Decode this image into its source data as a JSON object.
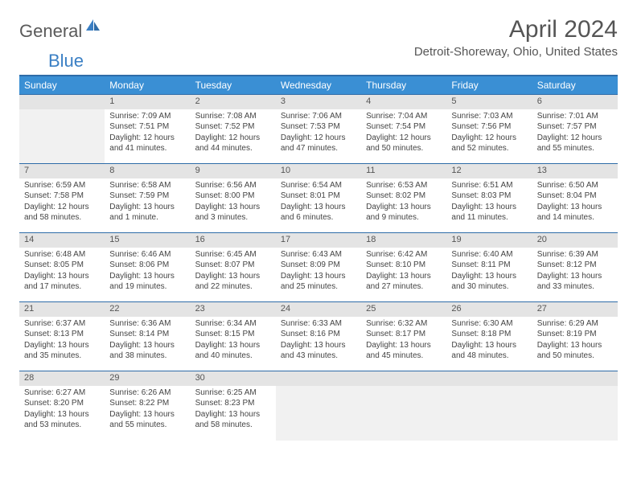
{
  "logo": {
    "text1": "General",
    "text2": "Blue"
  },
  "title": "April 2024",
  "location": "Detroit-Shoreway, Ohio, United States",
  "colors": {
    "header_bg": "#3a8fd4",
    "header_border": "#2e6ca8",
    "daynum_bg": "#e4e4e4",
    "empty_bg": "#f1f1f1",
    "text": "#444444",
    "logo_gray": "#5a5a5a",
    "logo_blue": "#3a7fc4"
  },
  "weekdays": [
    "Sunday",
    "Monday",
    "Tuesday",
    "Wednesday",
    "Thursday",
    "Friday",
    "Saturday"
  ],
  "weeks": [
    [
      null,
      {
        "n": "1",
        "sr": "7:09 AM",
        "ss": "7:51 PM",
        "dl": "12 hours and 41 minutes."
      },
      {
        "n": "2",
        "sr": "7:08 AM",
        "ss": "7:52 PM",
        "dl": "12 hours and 44 minutes."
      },
      {
        "n": "3",
        "sr": "7:06 AM",
        "ss": "7:53 PM",
        "dl": "12 hours and 47 minutes."
      },
      {
        "n": "4",
        "sr": "7:04 AM",
        "ss": "7:54 PM",
        "dl": "12 hours and 50 minutes."
      },
      {
        "n": "5",
        "sr": "7:03 AM",
        "ss": "7:56 PM",
        "dl": "12 hours and 52 minutes."
      },
      {
        "n": "6",
        "sr": "7:01 AM",
        "ss": "7:57 PM",
        "dl": "12 hours and 55 minutes."
      }
    ],
    [
      {
        "n": "7",
        "sr": "6:59 AM",
        "ss": "7:58 PM",
        "dl": "12 hours and 58 minutes."
      },
      {
        "n": "8",
        "sr": "6:58 AM",
        "ss": "7:59 PM",
        "dl": "13 hours and 1 minute."
      },
      {
        "n": "9",
        "sr": "6:56 AM",
        "ss": "8:00 PM",
        "dl": "13 hours and 3 minutes."
      },
      {
        "n": "10",
        "sr": "6:54 AM",
        "ss": "8:01 PM",
        "dl": "13 hours and 6 minutes."
      },
      {
        "n": "11",
        "sr": "6:53 AM",
        "ss": "8:02 PM",
        "dl": "13 hours and 9 minutes."
      },
      {
        "n": "12",
        "sr": "6:51 AM",
        "ss": "8:03 PM",
        "dl": "13 hours and 11 minutes."
      },
      {
        "n": "13",
        "sr": "6:50 AM",
        "ss": "8:04 PM",
        "dl": "13 hours and 14 minutes."
      }
    ],
    [
      {
        "n": "14",
        "sr": "6:48 AM",
        "ss": "8:05 PM",
        "dl": "13 hours and 17 minutes."
      },
      {
        "n": "15",
        "sr": "6:46 AM",
        "ss": "8:06 PM",
        "dl": "13 hours and 19 minutes."
      },
      {
        "n": "16",
        "sr": "6:45 AM",
        "ss": "8:07 PM",
        "dl": "13 hours and 22 minutes."
      },
      {
        "n": "17",
        "sr": "6:43 AM",
        "ss": "8:09 PM",
        "dl": "13 hours and 25 minutes."
      },
      {
        "n": "18",
        "sr": "6:42 AM",
        "ss": "8:10 PM",
        "dl": "13 hours and 27 minutes."
      },
      {
        "n": "19",
        "sr": "6:40 AM",
        "ss": "8:11 PM",
        "dl": "13 hours and 30 minutes."
      },
      {
        "n": "20",
        "sr": "6:39 AM",
        "ss": "8:12 PM",
        "dl": "13 hours and 33 minutes."
      }
    ],
    [
      {
        "n": "21",
        "sr": "6:37 AM",
        "ss": "8:13 PM",
        "dl": "13 hours and 35 minutes."
      },
      {
        "n": "22",
        "sr": "6:36 AM",
        "ss": "8:14 PM",
        "dl": "13 hours and 38 minutes."
      },
      {
        "n": "23",
        "sr": "6:34 AM",
        "ss": "8:15 PM",
        "dl": "13 hours and 40 minutes."
      },
      {
        "n": "24",
        "sr": "6:33 AM",
        "ss": "8:16 PM",
        "dl": "13 hours and 43 minutes."
      },
      {
        "n": "25",
        "sr": "6:32 AM",
        "ss": "8:17 PM",
        "dl": "13 hours and 45 minutes."
      },
      {
        "n": "26",
        "sr": "6:30 AM",
        "ss": "8:18 PM",
        "dl": "13 hours and 48 minutes."
      },
      {
        "n": "27",
        "sr": "6:29 AM",
        "ss": "8:19 PM",
        "dl": "13 hours and 50 minutes."
      }
    ],
    [
      {
        "n": "28",
        "sr": "6:27 AM",
        "ss": "8:20 PM",
        "dl": "13 hours and 53 minutes."
      },
      {
        "n": "29",
        "sr": "6:26 AM",
        "ss": "8:22 PM",
        "dl": "13 hours and 55 minutes."
      },
      {
        "n": "30",
        "sr": "6:25 AM",
        "ss": "8:23 PM",
        "dl": "13 hours and 58 minutes."
      },
      null,
      null,
      null,
      null
    ]
  ],
  "labels": {
    "sunrise": "Sunrise:",
    "sunset": "Sunset:",
    "daylight": "Daylight:"
  }
}
